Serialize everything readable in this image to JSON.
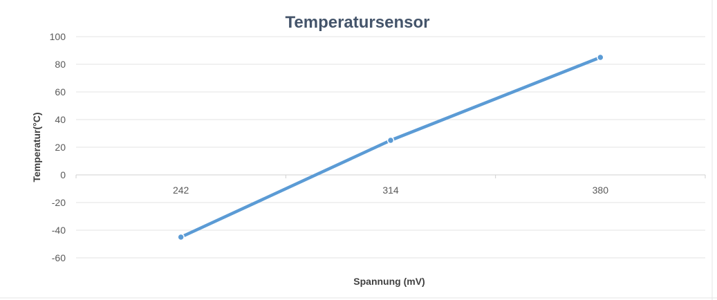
{
  "chart_data": {
    "type": "line",
    "title": "Temperatursensor",
    "xlabel": "Spannung (mV)",
    "ylabel": "Temperatur(°C)",
    "categories": [
      "242",
      "314",
      "380"
    ],
    "series": [
      {
        "values": [
          -45,
          25,
          85
        ],
        "color": "#5b9bd5"
      }
    ],
    "ylim": [
      -60,
      100
    ],
    "yticks": [
      100,
      80,
      60,
      40,
      20,
      0,
      -20,
      -40,
      -60
    ],
    "grid": true,
    "legend": "none"
  }
}
